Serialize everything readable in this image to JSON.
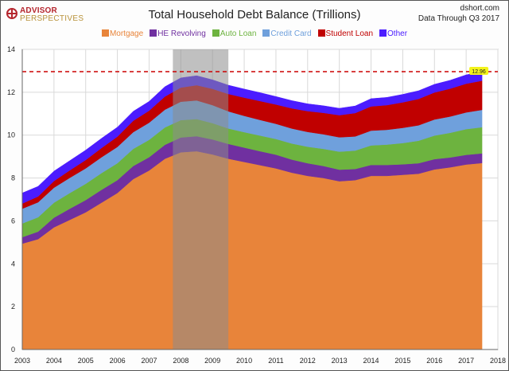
{
  "header": {
    "logo_line1": "ADVISOR",
    "logo_line2": "PERSPECTIVES",
    "source_line1": "dshort.com",
    "source_line2": "Data Through Q3 2017"
  },
  "chart_data": {
    "type": "area",
    "stacked": true,
    "title": "Total Household Debt Balance (Trillions)",
    "xlim": [
      2003,
      2018
    ],
    "ylim": [
      0,
      14
    ],
    "x_ticks": [
      "2003",
      "2004",
      "2005",
      "2006",
      "2007",
      "2008",
      "2009",
      "2010",
      "2011",
      "2012",
      "2013",
      "2014",
      "2015",
      "2016",
      "2017",
      "2018"
    ],
    "y_ticks": [
      "0",
      "2",
      "4",
      "6",
      "8",
      "10",
      "12",
      "14"
    ],
    "grid": true,
    "legend_position": "top",
    "recession_band": [
      2007.75,
      2009.5
    ],
    "reference_line": {
      "value": 12.96,
      "label": "12.96",
      "color": "#cc0000"
    },
    "x": [
      2003.0,
      2003.5,
      2004.0,
      2004.5,
      2005.0,
      2005.5,
      2006.0,
      2006.5,
      2007.0,
      2007.5,
      2008.0,
      2008.5,
      2009.0,
      2009.5,
      2010.0,
      2010.5,
      2011.0,
      2011.5,
      2012.0,
      2012.5,
      2013.0,
      2013.5,
      2014.0,
      2014.5,
      2015.0,
      2015.5,
      2016.0,
      2016.5,
      2017.0,
      2017.5
    ],
    "series": [
      {
        "name": "Mortgage",
        "color": "#e8843a",
        "values": [
          4.94,
          5.15,
          5.7,
          6.05,
          6.4,
          6.85,
          7.3,
          7.95,
          8.35,
          8.9,
          9.2,
          9.25,
          9.1,
          8.9,
          8.75,
          8.6,
          8.45,
          8.25,
          8.1,
          8.0,
          7.85,
          7.9,
          8.1,
          8.1,
          8.15,
          8.2,
          8.4,
          8.5,
          8.63,
          8.7
        ]
      },
      {
        "name": "HE Revolving",
        "color": "#7030a0",
        "values": [
          0.3,
          0.35,
          0.45,
          0.52,
          0.57,
          0.6,
          0.6,
          0.61,
          0.62,
          0.65,
          0.69,
          0.7,
          0.7,
          0.69,
          0.67,
          0.65,
          0.64,
          0.61,
          0.59,
          0.56,
          0.54,
          0.52,
          0.51,
          0.51,
          0.49,
          0.49,
          0.48,
          0.46,
          0.45,
          0.45
        ]
      },
      {
        "name": "Auto Loan",
        "color": "#6db33f",
        "values": [
          0.64,
          0.67,
          0.7,
          0.73,
          0.76,
          0.78,
          0.79,
          0.8,
          0.81,
          0.81,
          0.81,
          0.8,
          0.76,
          0.72,
          0.72,
          0.73,
          0.73,
          0.75,
          0.77,
          0.8,
          0.84,
          0.86,
          0.91,
          0.95,
          0.99,
          1.05,
          1.1,
          1.15,
          1.2,
          1.22
        ]
      },
      {
        "name": "Credit Card",
        "color": "#6fa0dc",
        "values": [
          0.69,
          0.7,
          0.7,
          0.71,
          0.72,
          0.74,
          0.76,
          0.78,
          0.8,
          0.83,
          0.86,
          0.87,
          0.84,
          0.8,
          0.76,
          0.73,
          0.71,
          0.7,
          0.69,
          0.68,
          0.67,
          0.66,
          0.69,
          0.69,
          0.71,
          0.72,
          0.75,
          0.76,
          0.78,
          0.81
        ]
      },
      {
        "name": "Student Loan",
        "color": "#c00000",
        "values": [
          0.24,
          0.27,
          0.31,
          0.35,
          0.39,
          0.43,
          0.48,
          0.53,
          0.56,
          0.61,
          0.66,
          0.71,
          0.76,
          0.81,
          0.85,
          0.88,
          0.9,
          0.94,
          0.97,
          1.0,
          1.03,
          1.09,
          1.13,
          1.15,
          1.19,
          1.23,
          1.26,
          1.3,
          1.34,
          1.36
        ]
      },
      {
        "name": "Other",
        "color": "#4b1cff",
        "values": [
          0.49,
          0.47,
          0.46,
          0.45,
          0.46,
          0.45,
          0.44,
          0.44,
          0.43,
          0.46,
          0.45,
          0.44,
          0.42,
          0.41,
          0.4,
          0.39,
          0.37,
          0.36,
          0.34,
          0.33,
          0.32,
          0.33,
          0.36,
          0.36,
          0.37,
          0.38,
          0.38,
          0.39,
          0.41,
          0.42
        ]
      }
    ]
  }
}
